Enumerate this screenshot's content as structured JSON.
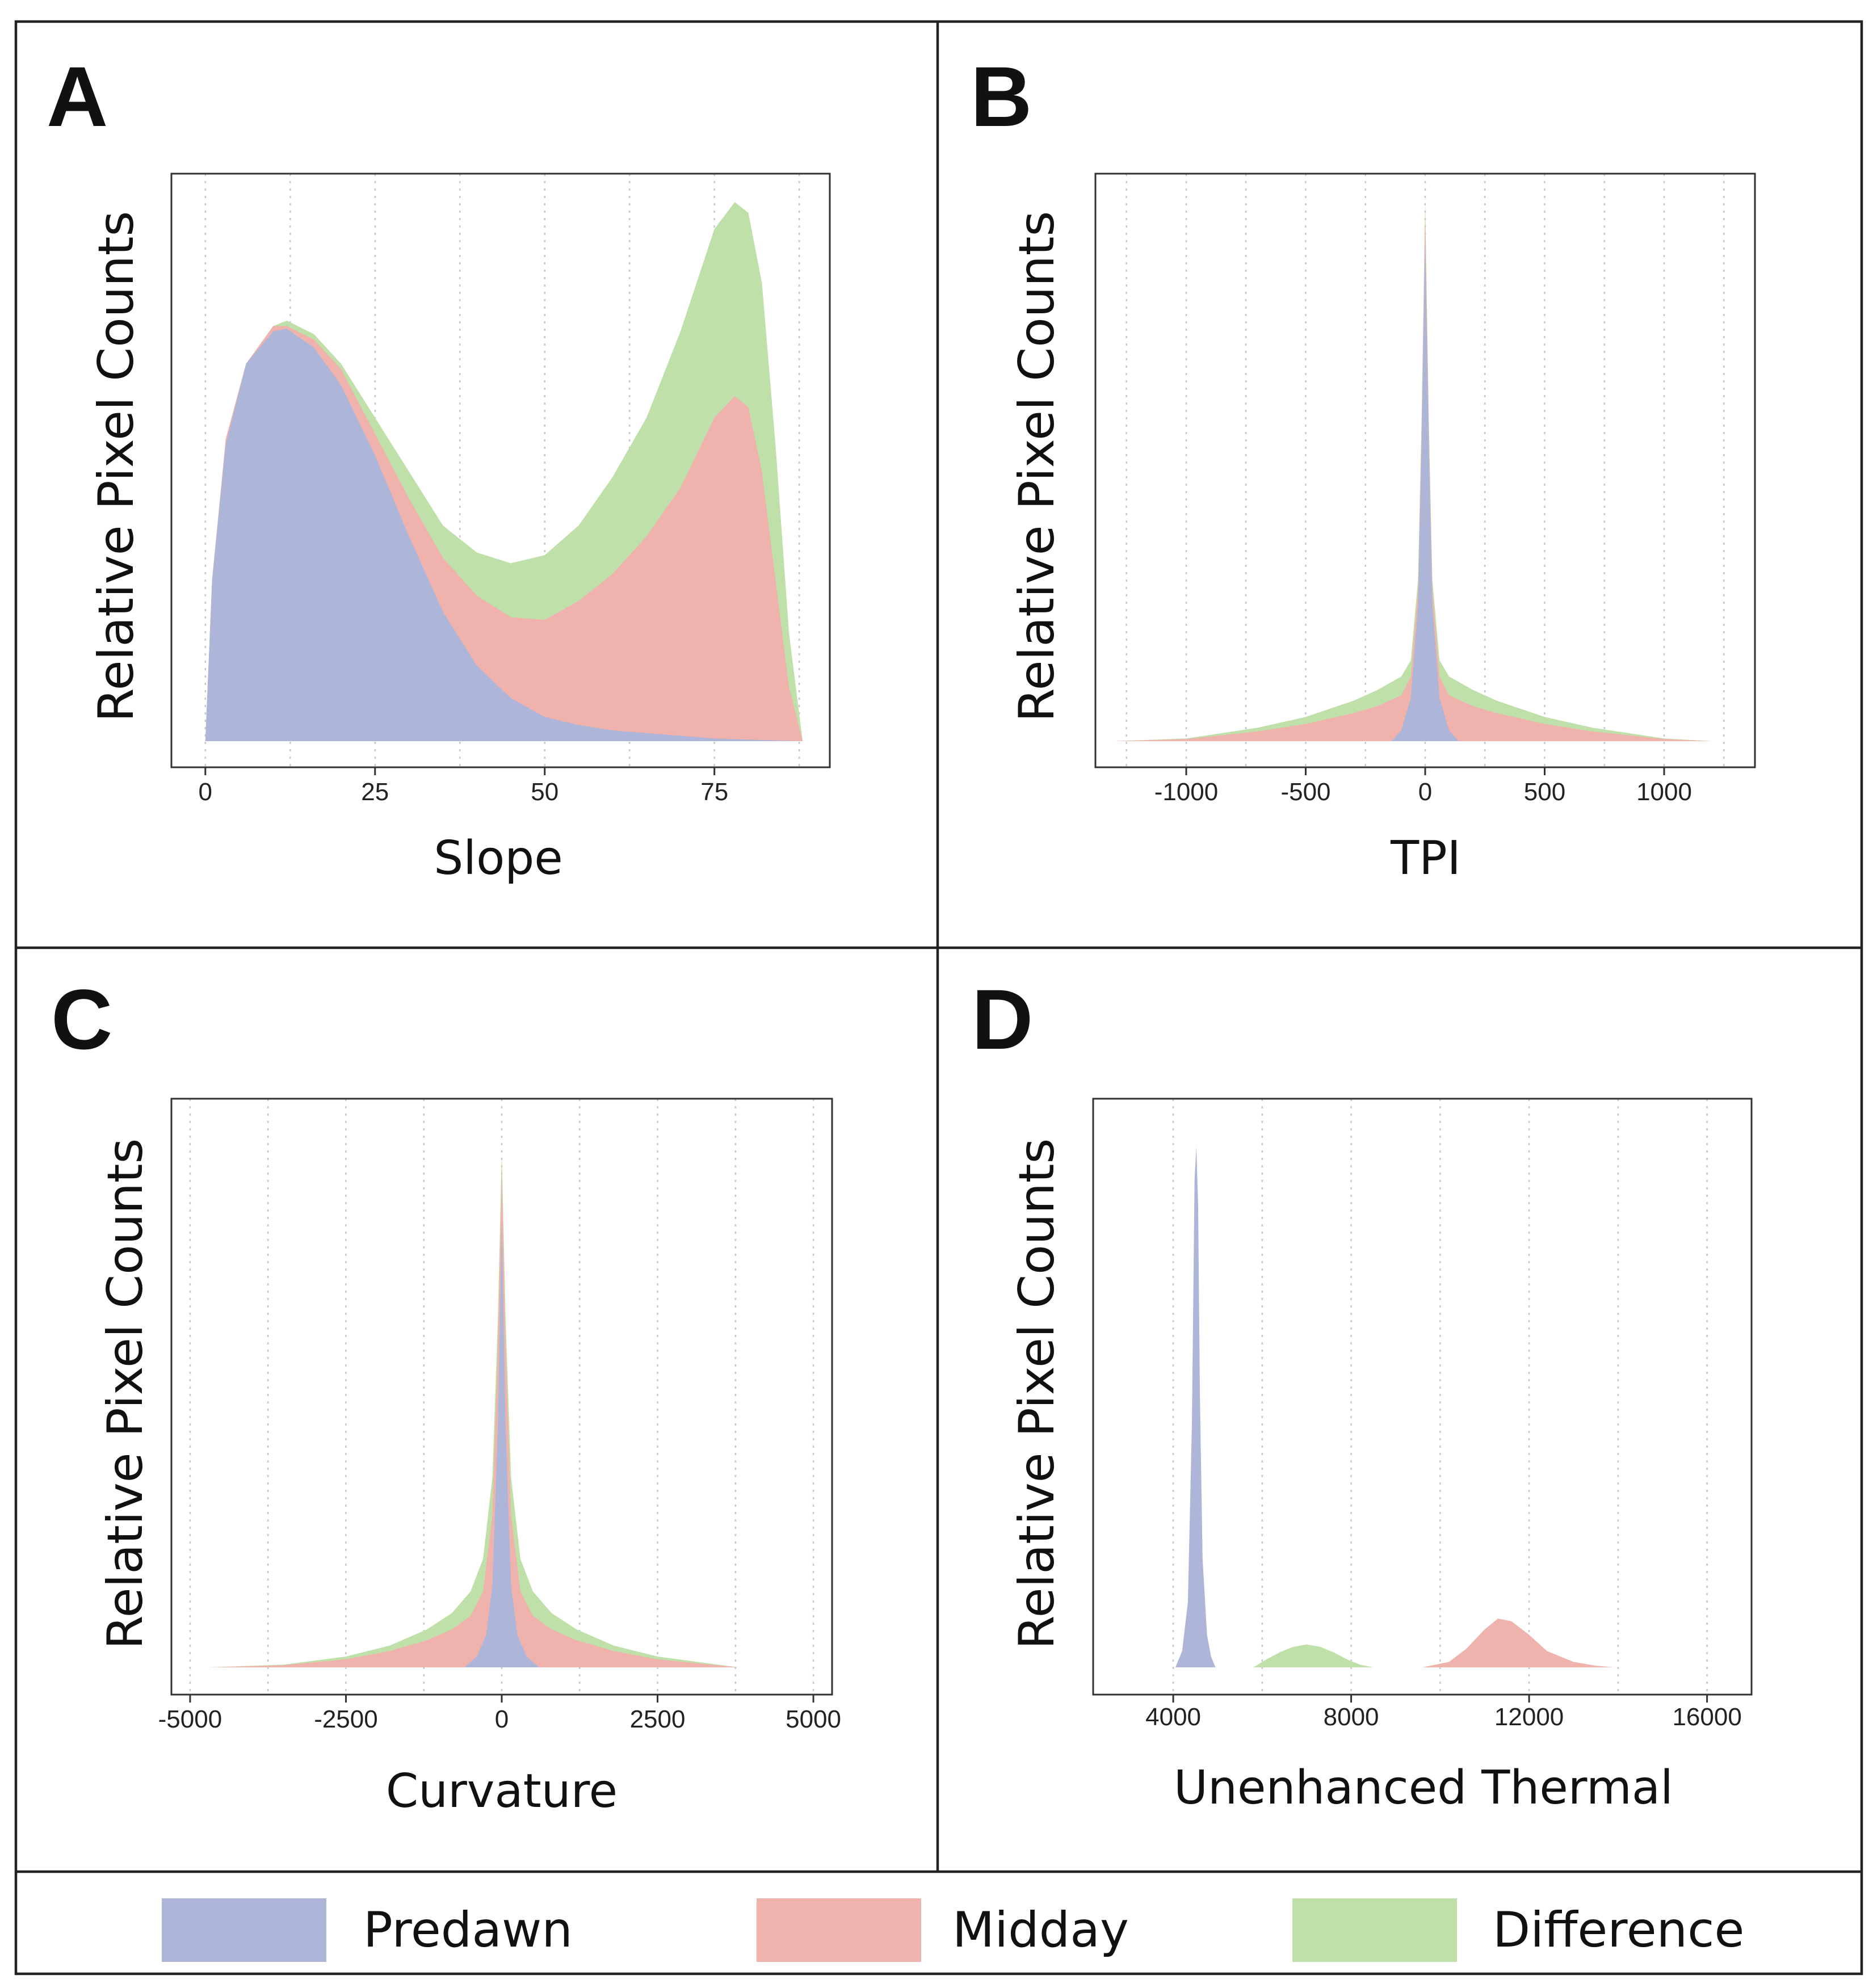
{
  "legend": [
    {
      "key": "difference",
      "label": "Difference",
      "color": "#bfe0a8"
    },
    {
      "key": "midday",
      "label": "Midday",
      "color": "#efb2ac"
    },
    {
      "key": "predawn",
      "label": "Predawn",
      "color": "#adb5d8"
    }
  ],
  "chart_data": [
    {
      "panel": "A",
      "type": "area",
      "xlabel": "Slope",
      "ylabel": "Relative Pixel Counts",
      "xlim": [
        -5,
        92
      ],
      "ylim": [
        0,
        1.0
      ],
      "xticks": [
        0,
        25,
        50,
        75
      ],
      "series": [
        {
          "key": "difference",
          "name": "Difference",
          "x": [
            0,
            1,
            3,
            6,
            10,
            12,
            16,
            20,
            25,
            30,
            35,
            40,
            45,
            50,
            55,
            60,
            65,
            70,
            75,
            78,
            80,
            82,
            84,
            86,
            88
          ],
          "y": [
            0,
            0.3,
            0.56,
            0.7,
            0.77,
            0.78,
            0.755,
            0.7,
            0.6,
            0.5,
            0.4,
            0.35,
            0.33,
            0.345,
            0.4,
            0.49,
            0.6,
            0.76,
            0.95,
            1.0,
            0.98,
            0.85,
            0.55,
            0.2,
            0
          ]
        },
        {
          "key": "midday",
          "name": "Midday",
          "x": [
            0,
            1,
            3,
            6,
            10,
            12,
            16,
            20,
            25,
            30,
            35,
            40,
            45,
            50,
            55,
            60,
            65,
            70,
            75,
            78,
            80,
            82,
            84,
            86,
            88
          ],
          "y": [
            0,
            0.3,
            0.56,
            0.7,
            0.77,
            0.77,
            0.745,
            0.69,
            0.57,
            0.45,
            0.34,
            0.27,
            0.23,
            0.225,
            0.26,
            0.31,
            0.38,
            0.47,
            0.6,
            0.64,
            0.62,
            0.5,
            0.3,
            0.1,
            0
          ]
        },
        {
          "key": "predawn",
          "name": "Predawn",
          "x": [
            0,
            1,
            3,
            6,
            10,
            12,
            16,
            20,
            25,
            30,
            35,
            40,
            45,
            50,
            55,
            60,
            65,
            70,
            75,
            80,
            85,
            88
          ],
          "y": [
            0,
            0.3,
            0.55,
            0.7,
            0.76,
            0.765,
            0.73,
            0.66,
            0.53,
            0.38,
            0.24,
            0.14,
            0.08,
            0.045,
            0.03,
            0.02,
            0.015,
            0.01,
            0.005,
            0.003,
            0.001,
            0
          ]
        }
      ]
    },
    {
      "panel": "B",
      "type": "area",
      "xlabel": "TPI",
      "ylabel": "Relative Pixel Counts",
      "xlim": [
        -1380,
        1380
      ],
      "ylim": [
        0,
        1.0
      ],
      "xticks": [
        -1000,
        -500,
        0,
        500,
        1000
      ],
      "series": [
        {
          "key": "difference",
          "name": "Difference",
          "x": [
            -1300,
            -1000,
            -700,
            -500,
            -300,
            -200,
            -100,
            -60,
            -30,
            -15,
            0,
            15,
            30,
            60,
            100,
            200,
            300,
            500,
            700,
            1000,
            1200
          ],
          "y": [
            0,
            0.005,
            0.025,
            0.045,
            0.075,
            0.095,
            0.12,
            0.15,
            0.3,
            0.6,
            1.0,
            0.6,
            0.3,
            0.15,
            0.12,
            0.095,
            0.075,
            0.045,
            0.025,
            0.005,
            0
          ]
        },
        {
          "key": "midday",
          "name": "Midday",
          "x": [
            -1300,
            -1000,
            -700,
            -500,
            -300,
            -200,
            -100,
            -60,
            -30,
            -15,
            0,
            15,
            30,
            60,
            100,
            200,
            300,
            500,
            700,
            1000,
            1200
          ],
          "y": [
            0,
            0.004,
            0.018,
            0.032,
            0.052,
            0.065,
            0.085,
            0.12,
            0.28,
            0.58,
            0.98,
            0.58,
            0.28,
            0.12,
            0.085,
            0.065,
            0.052,
            0.032,
            0.018,
            0.004,
            0
          ]
        },
        {
          "key": "predawn",
          "name": "Predawn",
          "x": [
            -140,
            -100,
            -60,
            -30,
            -15,
            0,
            15,
            30,
            60,
            100,
            140
          ],
          "y": [
            0,
            0.02,
            0.08,
            0.25,
            0.55,
            0.93,
            0.55,
            0.25,
            0.08,
            0.02,
            0
          ]
        }
      ]
    },
    {
      "panel": "C",
      "type": "area",
      "xlabel": "Curvature",
      "ylabel": "Relative Pixel Counts",
      "xlim": [
        -5300,
        5300
      ],
      "ylim": [
        0,
        1.0
      ],
      "xticks": [
        -5000,
        -2500,
        0,
        2500,
        5000
      ],
      "xticklabels": [
        "-5000",
        "-2500",
        "0",
        "2500",
        "5000"
      ],
      "series": [
        {
          "key": "difference",
          "name": "Difference",
          "x": [
            -4700,
            -3500,
            -2500,
            -1800,
            -1200,
            -800,
            -500,
            -300,
            -150,
            -60,
            0,
            60,
            150,
            300,
            500,
            800,
            1200,
            1800,
            2500,
            3800
          ],
          "y": [
            0,
            0.005,
            0.02,
            0.04,
            0.07,
            0.1,
            0.14,
            0.2,
            0.35,
            0.65,
            0.95,
            0.65,
            0.35,
            0.2,
            0.14,
            0.1,
            0.07,
            0.04,
            0.02,
            0
          ]
        },
        {
          "key": "midday",
          "name": "Midday",
          "x": [
            -4700,
            -3500,
            -2500,
            -1800,
            -1200,
            -800,
            -500,
            -300,
            -150,
            -60,
            0,
            60,
            150,
            300,
            500,
            800,
            1200,
            1800,
            2500,
            3800
          ],
          "y": [
            0,
            0.004,
            0.015,
            0.03,
            0.05,
            0.07,
            0.095,
            0.14,
            0.28,
            0.6,
            0.92,
            0.6,
            0.28,
            0.14,
            0.095,
            0.07,
            0.05,
            0.03,
            0.015,
            0
          ]
        },
        {
          "key": "predawn",
          "name": "Predawn",
          "x": [
            -600,
            -400,
            -250,
            -150,
            -60,
            0,
            60,
            150,
            250,
            400,
            600
          ],
          "y": [
            0,
            0.02,
            0.06,
            0.15,
            0.45,
            0.82,
            0.45,
            0.15,
            0.06,
            0.02,
            0
          ]
        }
      ]
    },
    {
      "panel": "D",
      "type": "area",
      "xlabel": "Unenhanced Thermal",
      "ylabel": "Relative Pixel Counts",
      "xlim": [
        2200,
        17000
      ],
      "ylim": [
        0,
        1.0
      ],
      "xticks": [
        4000,
        8000,
        12000,
        16000
      ],
      "series": [
        {
          "key": "difference",
          "name": "Difference",
          "x": [
            5800,
            6100,
            6400,
            6700,
            7000,
            7300,
            7600,
            7900,
            8200,
            8500
          ],
          "y": [
            0,
            0.015,
            0.028,
            0.038,
            0.042,
            0.038,
            0.028,
            0.015,
            0.005,
            0
          ]
        },
        {
          "key": "midday",
          "name": "Midday",
          "x": [
            9600,
            10200,
            10600,
            11000,
            11300,
            11600,
            12000,
            12400,
            13000,
            13500,
            13900
          ],
          "y": [
            0,
            0.01,
            0.035,
            0.07,
            0.09,
            0.085,
            0.06,
            0.03,
            0.01,
            0.003,
            0
          ]
        },
        {
          "key": "predawn",
          "name": "Predawn",
          "x": [
            4050,
            4200,
            4330,
            4420,
            4480,
            4520,
            4560,
            4600,
            4660,
            4760,
            4850,
            4950
          ],
          "y": [
            0,
            0.03,
            0.12,
            0.45,
            0.9,
            0.96,
            0.85,
            0.5,
            0.2,
            0.06,
            0.02,
            0
          ]
        }
      ]
    }
  ]
}
